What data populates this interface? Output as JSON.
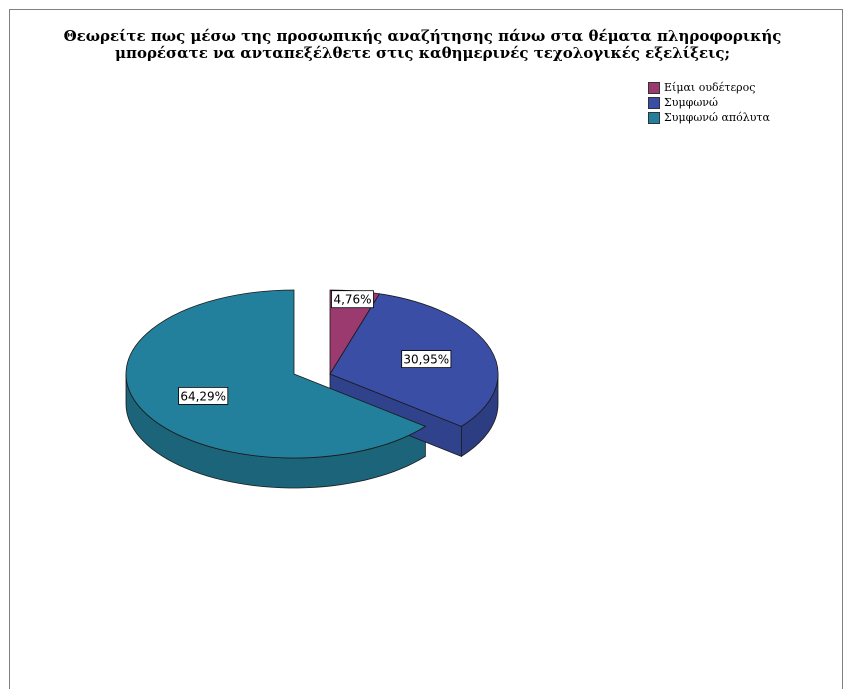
{
  "chart_data": {
    "type": "pie",
    "title_lines": [
      "Θεωρείτε πως μέσω της προσωπικής αναζήτησης πάνω στα θέματα πληροφορικής",
      "μπορέσατε να ανταπεξέλθετε στις καθημερινές τεχολογικές εξελίξεις;"
    ],
    "categories": [
      "Είμαι ουδέτερος",
      "Συμφωνώ",
      "Συμφωνώ απόλυτα"
    ],
    "values": [
      4.76,
      30.95,
      64.29
    ],
    "data_labels": [
      "4,76%",
      "30,95%",
      "64,29%"
    ],
    "colors": [
      "#9b3a6e",
      "#3a4ea6",
      "#23809c"
    ],
    "legend_position": "top-right",
    "exploded": [
      false,
      true,
      true
    ],
    "style": "3d"
  }
}
